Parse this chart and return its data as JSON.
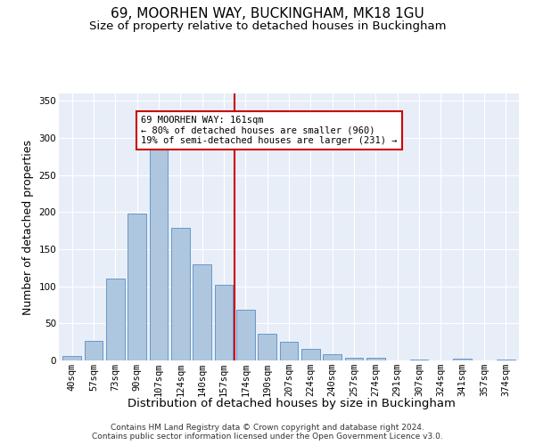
{
  "title": "69, MOORHEN WAY, BUCKINGHAM, MK18 1GU",
  "subtitle": "Size of property relative to detached houses in Buckingham",
  "xlabel": "Distribution of detached houses by size in Buckingham",
  "ylabel": "Number of detached properties",
  "footer_line1": "Contains HM Land Registry data © Crown copyright and database right 2024.",
  "footer_line2": "Contains public sector information licensed under the Open Government Licence v3.0.",
  "bar_labels": [
    "40sqm",
    "57sqm",
    "73sqm",
    "90sqm",
    "107sqm",
    "124sqm",
    "140sqm",
    "157sqm",
    "174sqm",
    "190sqm",
    "207sqm",
    "224sqm",
    "240sqm",
    "257sqm",
    "274sqm",
    "291sqm",
    "307sqm",
    "324sqm",
    "341sqm",
    "357sqm",
    "374sqm"
  ],
  "bar_heights": [
    6,
    27,
    110,
    198,
    290,
    179,
    130,
    102,
    68,
    36,
    25,
    16,
    8,
    4,
    4,
    0,
    1,
    0,
    2,
    0,
    1
  ],
  "bar_color": "#aec6de",
  "bar_edgecolor": "#6699cc",
  "vline_color": "#cc0000",
  "annotation_text": "69 MOORHEN WAY: 161sqm\n← 80% of detached houses are smaller (960)\n19% of semi-detached houses are larger (231) →",
  "annotation_box_edgecolor": "#cc0000",
  "ylim": [
    0,
    360
  ],
  "yticks": [
    0,
    50,
    100,
    150,
    200,
    250,
    300,
    350
  ],
  "background_color": "#e8eef8",
  "grid_color": "#ffffff",
  "title_fontsize": 11,
  "subtitle_fontsize": 9.5,
  "xlabel_fontsize": 9.5,
  "ylabel_fontsize": 9,
  "tick_fontsize": 7.5,
  "footer_fontsize": 6.5,
  "ann_fontsize": 7.5
}
